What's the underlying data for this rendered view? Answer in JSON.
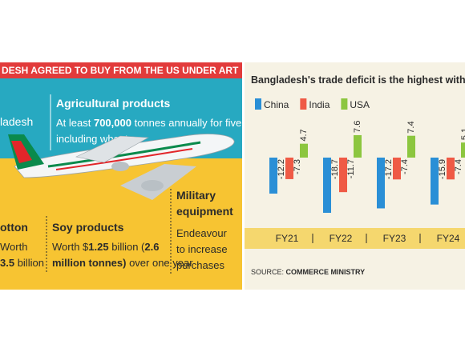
{
  "infographic": {
    "header": "DESH AGREED TO BUY FROM THE US UNDER ART",
    "fragment": "ladesh",
    "agri": {
      "title": "Agricultural products",
      "line1": [
        "At least ",
        "700,000",
        " tonnes annually for five years,"
      ],
      "line2": "including wheat"
    },
    "cotton": {
      "title": "otton",
      "line1": "Worth",
      "line2": [
        "3.5",
        " billion"
      ]
    },
    "soy": {
      "title": "Soy products",
      "line1": [
        "Worth $",
        "1.25",
        " billion (",
        "2.6"
      ],
      "line2": [
        "million tonnes)",
        " over one year"
      ]
    },
    "military": {
      "title": [
        "Military",
        "equipment"
      ],
      "lines": [
        "Endeavour",
        "to increase",
        "purchases"
      ]
    }
  },
  "chart_data": {
    "type": "bar",
    "title": "Bangladesh's trade deficit is the highest with China",
    "categories": [
      "FY21",
      "FY22",
      "FY23",
      "FY24"
    ],
    "series": [
      {
        "name": "China",
        "color": "#2a8fd6",
        "values": [
          -12.2,
          -18.7,
          -17.2,
          -15.9
        ]
      },
      {
        "name": "India",
        "color": "#ef5a45",
        "values": [
          -7.3,
          -11.7,
          -7.4,
          -7.4
        ]
      },
      {
        "name": "USA",
        "color": "#8cc63f",
        "values": [
          4.7,
          7.6,
          7.4,
          5.1
        ]
      }
    ],
    "source": [
      "SOURCE: ",
      "COMMERCE MINISTRY"
    ]
  }
}
